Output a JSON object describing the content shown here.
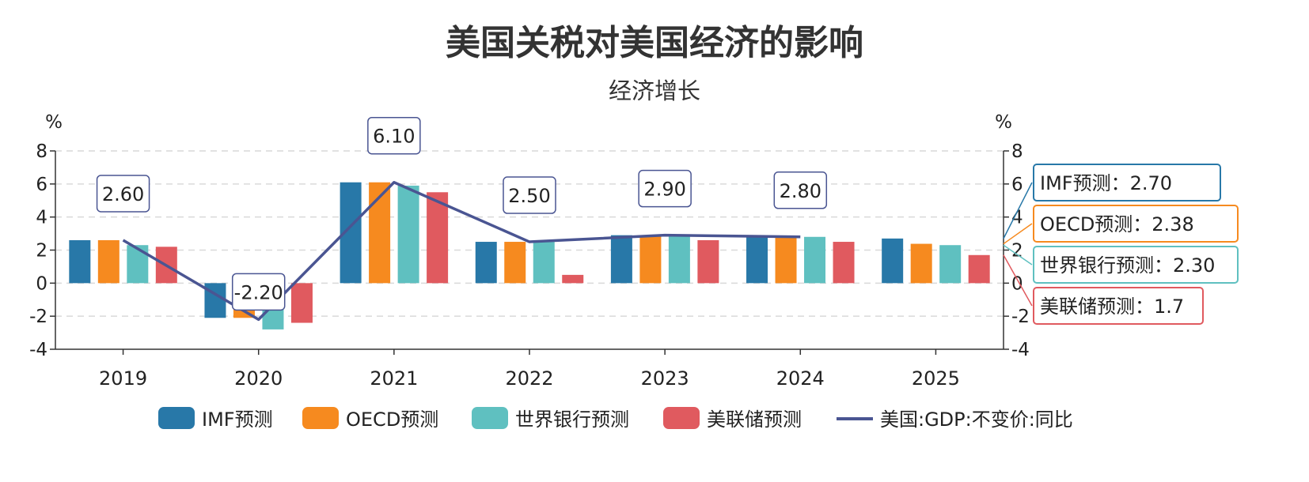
{
  "chart_data": {
    "type": "bar",
    "title": "美国关税对美国经济的影响",
    "subtitle": "经济增长",
    "categories": [
      "2019",
      "2020",
      "2021",
      "2022",
      "2023",
      "2024",
      "2025"
    ],
    "y_unit_left": "%",
    "y_unit_right": "%",
    "ylim": [
      -4,
      8
    ],
    "yticks": [
      -4,
      -2,
      0,
      2,
      4,
      6,
      8
    ],
    "grid": true,
    "legend_position": "bottom",
    "series": [
      {
        "name": "IMF预测",
        "type": "bar",
        "color": "#2878a8",
        "values": [
          2.6,
          -2.1,
          6.1,
          2.5,
          2.9,
          2.8,
          2.7
        ]
      },
      {
        "name": "OECD预测",
        "type": "bar",
        "color": "#f68a1f",
        "values": [
          2.6,
          -2.1,
          6.1,
          2.5,
          2.9,
          2.8,
          2.38
        ]
      },
      {
        "name": "世界银行预测",
        "type": "bar",
        "color": "#5fc0c0",
        "values": [
          2.3,
          -2.8,
          5.9,
          2.5,
          2.9,
          2.8,
          2.3
        ]
      },
      {
        "name": "美联储预测",
        "type": "bar",
        "color": "#e05a5f",
        "values": [
          2.2,
          -2.4,
          5.5,
          0.5,
          2.6,
          2.5,
          1.7
        ]
      },
      {
        "name": "美国:GDP:不变价:同比",
        "type": "line",
        "color": "#4a5592",
        "values": [
          2.6,
          -2.2,
          6.1,
          2.5,
          2.9,
          2.8,
          null
        ]
      }
    ],
    "line_labels": [
      "2.60",
      "-2.20",
      "6.10",
      "2.50",
      "2.90",
      "2.80"
    ],
    "end_labels": [
      {
        "series": "IMF预测",
        "text": "IMF预测：2.70"
      },
      {
        "series": "OECD预测",
        "text": "OECD预测：2.38"
      },
      {
        "series": "世界银行预测",
        "text": "世界银行预测：2.30"
      },
      {
        "series": "美联储预测",
        "text": "美联储预测：1.7"
      }
    ]
  }
}
